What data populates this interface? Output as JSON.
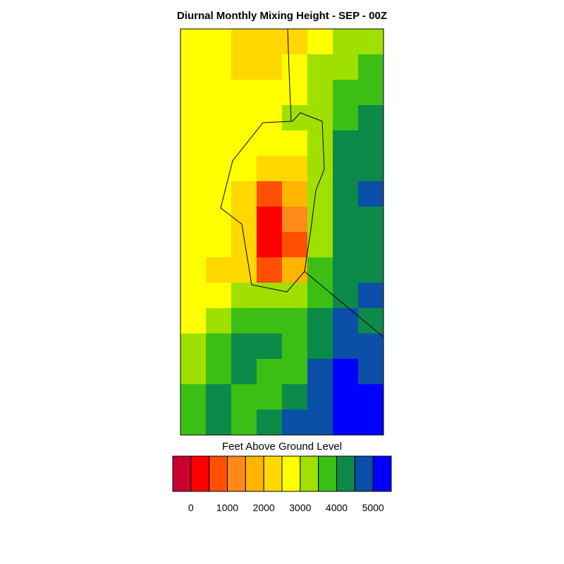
{
  "chart_data": {
    "type": "heatmap",
    "title": "Diurnal Monthly Mixing Height - SEP - 00Z",
    "colorbar": {
      "label": "Feet Above Ground Level",
      "tick_labels": [
        "0",
        "1000",
        "2000",
        "3000",
        "4000",
        "5000"
      ],
      "tick_values": [
        0,
        1000,
        2000,
        3000,
        4000,
        5000
      ],
      "bins": [
        {
          "min": -500,
          "max": 0,
          "color": "#c8002f"
        },
        {
          "min": 0,
          "max": 500,
          "color": "#ff0000"
        },
        {
          "min": 500,
          "max": 1000,
          "color": "#ff4f00"
        },
        {
          "min": 1000,
          "max": 1500,
          "color": "#ff8a1a"
        },
        {
          "min": 1500,
          "max": 2000,
          "color": "#ffb400"
        },
        {
          "min": 2000,
          "max": 2500,
          "color": "#ffd800"
        },
        {
          "min": 2500,
          "max": 3000,
          "color": "#ffff00"
        },
        {
          "min": 3000,
          "max": 3500,
          "color": "#a0e000"
        },
        {
          "min": 3500,
          "max": 4000,
          "color": "#3cbf14"
        },
        {
          "min": 4000,
          "max": 4500,
          "color": "#0b8a4a"
        },
        {
          "min": 4500,
          "max": 5000,
          "color": "#0b4fa8"
        },
        {
          "min": 5000,
          "max": 5500,
          "color": "#0000ff"
        }
      ]
    },
    "grid": {
      "rows": 16,
      "cols": 8,
      "values": [
        [
          2700,
          2500,
          2400,
          2300,
          2100,
          2900,
          3200,
          3400
        ],
        [
          2700,
          2600,
          2300,
          2200,
          2500,
          3100,
          3400,
          3700
        ],
        [
          2800,
          2700,
          2500,
          2600,
          2800,
          3300,
          3700,
          3900
        ],
        [
          2800,
          2900,
          2800,
          2800,
          3000,
          3400,
          3900,
          4000
        ],
        [
          2700,
          2800,
          2600,
          2800,
          2900,
          3400,
          4000,
          4100
        ],
        [
          2800,
          2800,
          2500,
          2100,
          2400,
          3100,
          4100,
          4300
        ],
        [
          2800,
          2700,
          2300,
          600,
          1900,
          3000,
          4100,
          4600
        ],
        [
          2700,
          2600,
          2100,
          200,
          1200,
          3000,
          4000,
          4400
        ],
        [
          2700,
          2500,
          2000,
          200,
          600,
          3300,
          4000,
          4300
        ],
        [
          2700,
          2400,
          2200,
          700,
          1500,
          3600,
          4100,
          4200
        ],
        [
          2800,
          2600,
          3100,
          3400,
          3300,
          3700,
          4300,
          4500
        ],
        [
          2900,
          3300,
          3800,
          3900,
          3700,
          4300,
          4600,
          4400
        ],
        [
          3100,
          3700,
          4200,
          4200,
          3900,
          4400,
          4800,
          4700
        ],
        [
          3400,
          3900,
          4000,
          3900,
          3800,
          4500,
          5000,
          4900
        ],
        [
          3800,
          4000,
          3900,
          3800,
          4000,
          4700,
          5100,
          5100
        ],
        [
          3900,
          4100,
          3900,
          4200,
          4500,
          4800,
          5200,
          5200
        ]
      ]
    },
    "borders": "political boundary lines overlaid on map",
    "legend_placement": "bottom"
  }
}
